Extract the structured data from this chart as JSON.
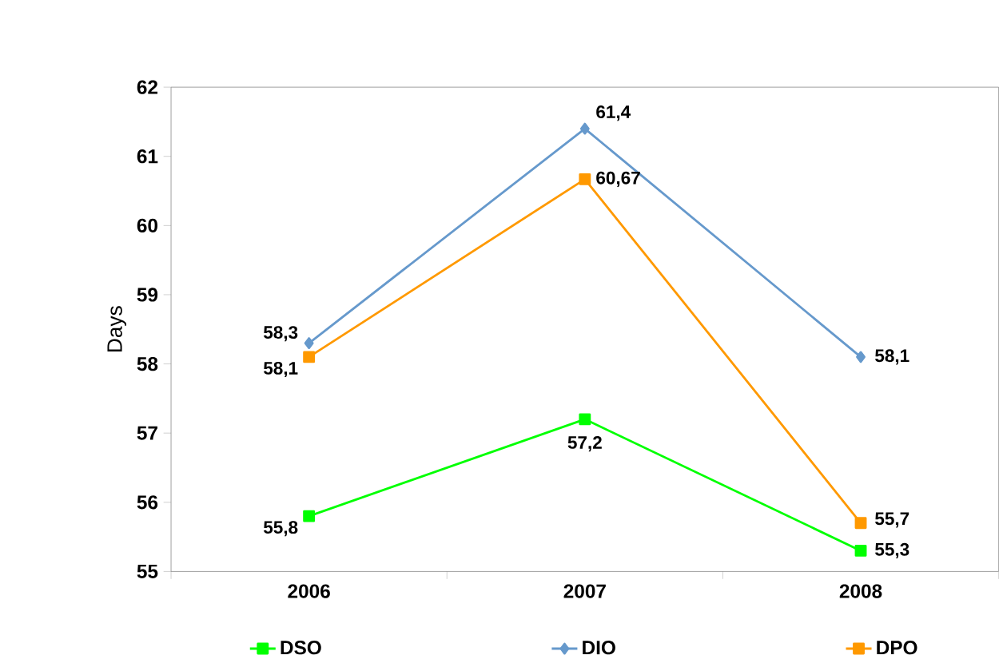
{
  "chart_data": {
    "type": "line",
    "ylabel": "Days",
    "categories": [
      "2006",
      "2007",
      "2008"
    ],
    "ylim": [
      55,
      62
    ],
    "yticks": [
      55,
      56,
      57,
      58,
      59,
      60,
      61,
      62
    ],
    "legend": "bottom",
    "grid": false,
    "series": [
      {
        "name": "DSO",
        "color": "#00ff00",
        "marker": "square",
        "values": [
          55.8,
          57.2,
          55.3
        ],
        "value_labels": [
          "55,8",
          "57,2",
          "55,3"
        ]
      },
      {
        "name": "DIO",
        "color": "#6699cc",
        "marker": "diamond",
        "values": [
          58.3,
          61.4,
          58.1
        ],
        "value_labels": [
          "58,3",
          "61,4",
          "58,1"
        ]
      },
      {
        "name": "DPO",
        "color": "#ff9900",
        "marker": "square",
        "values": [
          58.1,
          60.67,
          55.7
        ],
        "value_labels": [
          "58,1",
          "60,67",
          "55,7"
        ]
      }
    ]
  }
}
